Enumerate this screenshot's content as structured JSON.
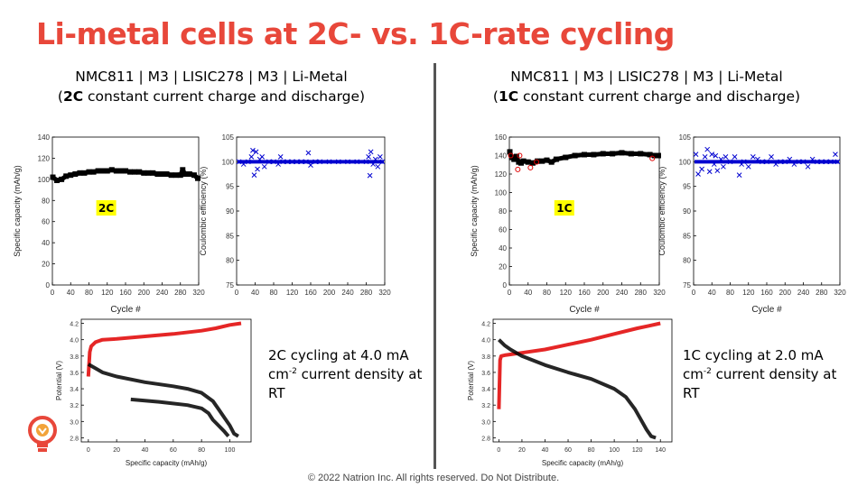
{
  "slide": {
    "title": "Li-metal cells at 2C- vs. 1C-rate cycling",
    "footer": "© 2022 Natrion Inc. All rights reserved. Do Not Distribute.",
    "colors": {
      "title": "#e8473a",
      "discharge": "#000000",
      "charge": "#e00000",
      "efficiency": "#0000d0",
      "tag_bg": "#ffff00"
    },
    "logo_icon": "lightbulb-logo-icon"
  },
  "left_panel": {
    "cell_stack": "NMC811 | M3 | LISIC278 | M3 | Li-Metal",
    "protocol_rate": "2C",
    "protocol_rest": " constant current charge and discharge)",
    "protocol_open": "(",
    "note_line1": "2C cycling at 4.0 mA",
    "note_line2_pre": "cm",
    "note_line2_sup": "-2",
    "note_line2_post": " current density at",
    "note_line3": "RT"
  },
  "right_panel": {
    "cell_stack": "NMC811 | M3 | LISIC278 | M3 | Li-Metal",
    "protocol_rate": "1C",
    "protocol_rest": " constant current charge and discharge)",
    "protocol_open": "(",
    "note_line1": "1C cycling at 2.0 mA",
    "note_line2_pre": "cm",
    "note_line2_sup": "-2",
    "note_line2_post": " current density at",
    "note_line3": "RT"
  },
  "chart_data": [
    {
      "id": "cap2c",
      "type": "scatter",
      "xlabel": "Cycle #",
      "ylabel": "Specific capacity (mAh/g)",
      "xlim": [
        0,
        320
      ],
      "ylim": [
        0,
        140
      ],
      "xticks": [
        0,
        40,
        80,
        120,
        160,
        200,
        240,
        280,
        320
      ],
      "yticks": [
        0,
        20,
        40,
        60,
        80,
        100,
        120,
        140
      ],
      "annotation": "2C",
      "series": [
        {
          "marker": "square",
          "color": "#000000",
          "x": [
            1,
            10,
            20,
            30,
            40,
            50,
            60,
            70,
            80,
            90,
            100,
            110,
            120,
            130,
            140,
            150,
            160,
            170,
            180,
            190,
            200,
            210,
            220,
            230,
            240,
            250,
            260,
            270,
            280,
            285,
            290,
            300,
            310,
            318
          ],
          "y": [
            102,
            99,
            100,
            103,
            104,
            105,
            106,
            106,
            107,
            107,
            108,
            108,
            108,
            109,
            108,
            108,
            108,
            107,
            107,
            107,
            106,
            106,
            106,
            105,
            105,
            105,
            104,
            104,
            104,
            109,
            105,
            105,
            104,
            101
          ]
        }
      ]
    },
    {
      "id": "ce2c",
      "type": "scatter",
      "xlabel": "",
      "ylabel": "Coulombic efficiency (%)",
      "xlim": [
        0,
        320
      ],
      "ylim": [
        75,
        105
      ],
      "xticks": [
        0,
        40,
        80,
        120,
        160,
        200,
        240,
        280,
        320
      ],
      "yticks": [
        75,
        80,
        85,
        90,
        95,
        100,
        105
      ],
      "series": [
        {
          "marker": "x",
          "color": "#0000d0",
          "x": [
            5,
            15,
            25,
            32,
            35,
            38,
            42,
            45,
            50,
            55,
            60,
            70,
            80,
            90,
            95,
            100,
            110,
            120,
            130,
            140,
            150,
            155,
            160,
            170,
            180,
            200,
            220,
            240,
            260,
            280,
            285,
            288,
            290,
            295,
            300,
            305,
            310,
            315
          ],
          "y": [
            100,
            99.5,
            100,
            101,
            102.3,
            97.3,
            102,
            98.5,
            100.5,
            101,
            99,
            100,
            100,
            99.5,
            101,
            100,
            100,
            100,
            100,
            100,
            100,
            101.8,
            99.3,
            100,
            100,
            100,
            100,
            100,
            100,
            100,
            101,
            97.2,
            102,
            99.5,
            100.5,
            99,
            101,
            100
          ]
        }
      ]
    },
    {
      "id": "vcurve2c",
      "type": "line",
      "xlabel": "Specific capacity (mAh/g)",
      "ylabel": "Potential (V)",
      "xlim": [
        -5,
        115
      ],
      "ylim": [
        2.75,
        4.25
      ],
      "xticks": [
        0,
        20,
        40,
        60,
        80,
        100
      ],
      "yticks": [
        2.8,
        3.0,
        3.2,
        3.4,
        3.6,
        3.8,
        4.0,
        4.2
      ],
      "series": [
        {
          "name": "",
          "color": "#e00000",
          "x": [
            0,
            1,
            2,
            5,
            10,
            20,
            40,
            60,
            80,
            90,
            100,
            108
          ],
          "y": [
            3.55,
            3.85,
            3.92,
            3.97,
            4.0,
            4.01,
            4.04,
            4.07,
            4.11,
            4.14,
            4.18,
            4.2
          ]
        },
        {
          "name": "",
          "color": "#000000",
          "x": [
            0,
            5,
            10,
            20,
            40,
            60,
            70,
            80,
            88,
            92,
            96,
            100,
            103,
            106
          ],
          "y": [
            3.7,
            3.65,
            3.6,
            3.55,
            3.48,
            3.43,
            3.4,
            3.35,
            3.25,
            3.15,
            3.05,
            2.95,
            2.85,
            2.82
          ]
        },
        {
          "name": "",
          "color": "#000000",
          "x": [
            30,
            50,
            70,
            80,
            85,
            88,
            92,
            96,
            99
          ],
          "y": [
            3.27,
            3.24,
            3.2,
            3.16,
            3.1,
            3.02,
            2.95,
            2.88,
            2.82
          ]
        }
      ]
    },
    {
      "id": "cap1c",
      "type": "scatter",
      "xlabel": "Cycle #",
      "ylabel": "Specific capacity (mAh/g)",
      "xlim": [
        0,
        320
      ],
      "ylim": [
        0,
        160
      ],
      "xticks": [
        0,
        40,
        80,
        120,
        160,
        200,
        240,
        280,
        320
      ],
      "yticks": [
        0,
        20,
        40,
        60,
        80,
        100,
        120,
        140,
        160
      ],
      "annotation": "1C",
      "series": [
        {
          "marker": "square",
          "color": "#000000",
          "x": [
            1,
            5,
            10,
            15,
            20,
            25,
            30,
            40,
            50,
            60,
            70,
            80,
            90,
            100,
            120,
            140,
            160,
            180,
            200,
            220,
            240,
            260,
            280,
            300,
            310,
            318
          ],
          "y": [
            144,
            138,
            136,
            139,
            133,
            132,
            134,
            133,
            132,
            134,
            134,
            135,
            133,
            136,
            138,
            140,
            141,
            141,
            142,
            142,
            143,
            142,
            142,
            141,
            140,
            140
          ]
        },
        {
          "marker": "circle",
          "color": "#e00000",
          "x": [
            3,
            18,
            22,
            45,
            58,
            305
          ],
          "y": [
            140,
            125,
            140,
            127,
            133,
            137
          ]
        }
      ]
    },
    {
      "id": "ce1c",
      "type": "scatter",
      "xlabel": "Cycle #",
      "ylabel": "Coulombic efficiency (%)",
      "xlim": [
        0,
        320
      ],
      "ylim": [
        75,
        105
      ],
      "xticks": [
        0,
        40,
        80,
        120,
        160,
        200,
        240,
        280,
        320
      ],
      "yticks": [
        75,
        80,
        85,
        90,
        95,
        100,
        105
      ],
      "series": [
        {
          "marker": "x",
          "color": "#0000d0",
          "x": [
            5,
            10,
            18,
            25,
            30,
            35,
            40,
            45,
            48,
            52,
            60,
            65,
            70,
            80,
            90,
            100,
            105,
            110,
            120,
            130,
            140,
            150,
            160,
            170,
            180,
            190,
            200,
            210,
            220,
            230,
            240,
            250,
            260,
            270,
            280,
            290,
            300,
            310,
            315
          ],
          "y": [
            101.5,
            97.5,
            98.5,
            101,
            102.5,
            98,
            101.5,
            99.5,
            101.2,
            98.2,
            100.5,
            99,
            101,
            100,
            101,
            97.3,
            99.5,
            100,
            99,
            101,
            100.5,
            100,
            100,
            101,
            99.5,
            100,
            100,
            100.5,
            99.5,
            100,
            100,
            99,
            100.5,
            100,
            100,
            100,
            100,
            101.5,
            100
          ]
        }
      ]
    },
    {
      "id": "vcurve1c",
      "type": "line",
      "xlabel": "Specific capacity (mAh/g)",
      "ylabel": "Potential (V)",
      "xlim": [
        -5,
        150
      ],
      "ylim": [
        2.75,
        4.25
      ],
      "xticks": [
        0,
        20,
        40,
        60,
        80,
        100,
        120,
        140
      ],
      "yticks": [
        2.8,
        3.0,
        3.2,
        3.4,
        3.6,
        3.8,
        4.0,
        4.2
      ],
      "series": [
        {
          "name": "",
          "color": "#e00000",
          "x": [
            0,
            1,
            2,
            5,
            10,
            20,
            40,
            60,
            80,
            100,
            120,
            130,
            140
          ],
          "y": [
            3.15,
            3.75,
            3.8,
            3.81,
            3.82,
            3.84,
            3.88,
            3.94,
            4.0,
            4.07,
            4.14,
            4.17,
            4.2
          ]
        },
        {
          "name": "",
          "color": "#000000",
          "x": [
            0,
            5,
            10,
            20,
            40,
            60,
            80,
            100,
            110,
            118,
            124,
            128,
            132,
            136
          ],
          "y": [
            4.0,
            3.93,
            3.88,
            3.8,
            3.69,
            3.6,
            3.52,
            3.4,
            3.3,
            3.15,
            3.0,
            2.9,
            2.82,
            2.8
          ]
        }
      ]
    }
  ]
}
